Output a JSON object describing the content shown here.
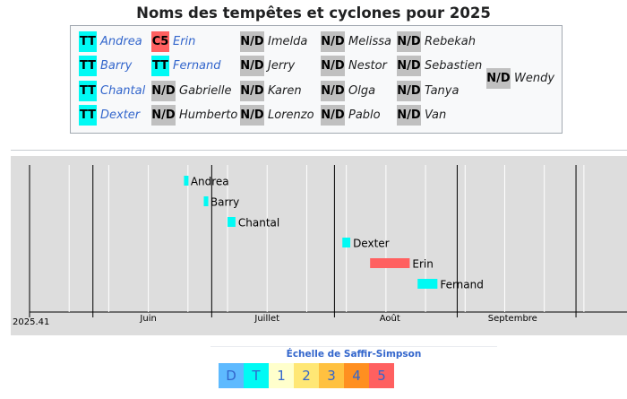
{
  "title": "Noms des tempêtes et cyclones pour 2025",
  "colors": {
    "TT": "#00faf4",
    "C5": "#ff6060",
    "ND": "#c0c0c0",
    "timeline_bg": "#dddddd"
  },
  "names": [
    {
      "badge": "TT",
      "name": "Andrea",
      "link": true
    },
    {
      "badge": "TT",
      "name": "Barry",
      "link": true
    },
    {
      "badge": "TT",
      "name": "Chantal",
      "link": true
    },
    {
      "badge": "TT",
      "name": "Dexter",
      "link": true
    },
    {
      "badge": "C5",
      "name": "Erin",
      "link": true
    },
    {
      "badge": "TT",
      "name": "Fernand",
      "link": true
    },
    {
      "badge": "N/D",
      "name": "Gabrielle",
      "link": false
    },
    {
      "badge": "N/D",
      "name": "Humberto",
      "link": false
    },
    {
      "badge": "N/D",
      "name": "Imelda",
      "link": false
    },
    {
      "badge": "N/D",
      "name": "Jerry",
      "link": false
    },
    {
      "badge": "N/D",
      "name": "Karen",
      "link": false
    },
    {
      "badge": "N/D",
      "name": "Lorenzo",
      "link": false
    },
    {
      "badge": "N/D",
      "name": "Melissa",
      "link": false
    },
    {
      "badge": "N/D",
      "name": "Nestor",
      "link": false
    },
    {
      "badge": "N/D",
      "name": "Olga",
      "link": false
    },
    {
      "badge": "N/D",
      "name": "Pablo",
      "link": false
    },
    {
      "badge": "N/D",
      "name": "Rebekah",
      "link": false
    },
    {
      "badge": "N/D",
      "name": "Sebastien",
      "link": false
    },
    {
      "badge": "N/D",
      "name": "Tanya",
      "link": false
    },
    {
      "badge": "N/D",
      "name": "Van",
      "link": false
    },
    {
      "badge": "N/D",
      "name": "Wendy",
      "link": false
    }
  ],
  "chart_data": {
    "type": "bar",
    "title": "",
    "x_start_label": "2025.41",
    "x_range": [
      "2025-05-16",
      "2025-10-08"
    ],
    "month_labels": [
      {
        "label": "Juin",
        "date": "2025-06-15"
      },
      {
        "label": "Juillet",
        "date": "2025-07-15"
      },
      {
        "label": "Août",
        "date": "2025-08-15"
      },
      {
        "label": "Septembre",
        "date": "2025-09-15"
      }
    ],
    "month_starts": [
      "2025-06-01",
      "2025-07-01",
      "2025-08-01",
      "2025-09-01",
      "2025-10-01"
    ],
    "storms": [
      {
        "name": "Andrea",
        "start": "2025-06-24",
        "end": "2025-06-25",
        "category": "TT"
      },
      {
        "name": "Barry",
        "start": "2025-06-29",
        "end": "2025-06-30",
        "category": "TT"
      },
      {
        "name": "Chantal",
        "start": "2025-07-05",
        "end": "2025-07-07",
        "category": "TT"
      },
      {
        "name": "Dexter",
        "start": "2025-08-03",
        "end": "2025-08-05",
        "category": "TT"
      },
      {
        "name": "Erin",
        "start": "2025-08-10",
        "end": "2025-08-20",
        "category": "C5"
      },
      {
        "name": "Fernand",
        "start": "2025-08-22",
        "end": "2025-08-27",
        "category": "TT"
      }
    ]
  },
  "legend": {
    "title": "Échelle de Saffir-Simpson",
    "items": [
      {
        "label": "D",
        "color": "#5ebaff"
      },
      {
        "label": "T",
        "color": "#00faf4"
      },
      {
        "label": "1",
        "color": "#ffffcc"
      },
      {
        "label": "2",
        "color": "#ffe775"
      },
      {
        "label": "3",
        "color": "#ffc140"
      },
      {
        "label": "4",
        "color": "#ff8f20"
      },
      {
        "label": "5",
        "color": "#ff6060"
      }
    ]
  }
}
